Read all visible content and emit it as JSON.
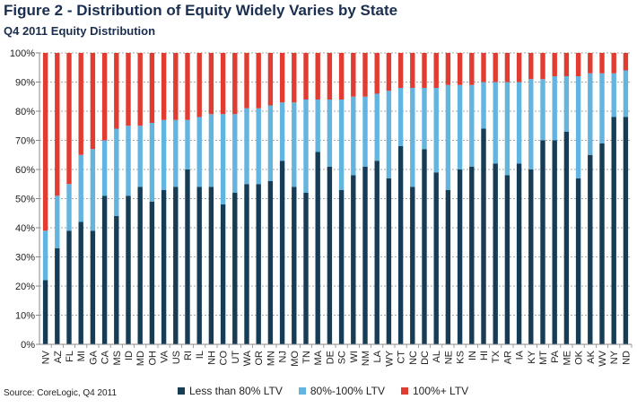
{
  "header": {
    "title": "Figure 2 - Distribution of Equity Widely Varies by State",
    "subtitle": "Q4 2011 Equity Distribution"
  },
  "footer": {
    "source": "Source: CoreLogic, Q4 2011"
  },
  "colors": {
    "less80": "#173c55",
    "ltv80_100": "#64b4e0",
    "ltv100plus": "#e03c31",
    "grid": "#8a8a8a",
    "axis": "#8a8a8a"
  },
  "chart_data": {
    "type": "bar",
    "stacked": true,
    "categories": [
      "NV",
      "AZ",
      "FL",
      "MI",
      "GA",
      "CA",
      "MS",
      "ID",
      "MD",
      "OH",
      "VA",
      "US",
      "RI",
      "IL",
      "NH",
      "CO",
      "UT",
      "WA",
      "OR",
      "MN",
      "NJ",
      "MO",
      "TN",
      "MA",
      "DE",
      "SC",
      "WI",
      "NM",
      "LA",
      "WY",
      "CT",
      "NC",
      "DC",
      "AL",
      "NE",
      "KS",
      "IN",
      "HI",
      "TX",
      "AR",
      "IA",
      "KY",
      "MT",
      "PA",
      "ME",
      "OK",
      "AK",
      "WV",
      "NY",
      "ND"
    ],
    "series": [
      {
        "name": "Less than 80% LTV",
        "values": [
          22,
          33,
          39,
          42,
          39,
          51,
          44,
          51,
          54,
          49,
          53,
          54,
          60,
          54,
          54,
          48,
          52,
          55,
          55,
          56,
          63,
          54,
          52,
          66,
          61,
          53,
          58,
          61,
          63,
          57,
          68,
          54,
          67,
          59,
          53,
          60,
          61,
          74,
          62,
          58,
          62,
          60,
          70,
          70,
          73,
          57,
          65,
          69,
          78,
          78
        ]
      },
      {
        "name": "80%-100% LTV",
        "values": [
          17,
          18,
          16,
          23,
          28,
          19,
          30,
          24,
          21,
          27,
          24,
          23,
          17,
          24,
          25,
          31,
          27,
          26,
          26,
          26,
          20,
          29,
          32,
          18,
          23,
          31,
          27,
          24,
          23,
          30,
          20,
          34,
          21,
          29,
          36,
          29,
          28,
          16,
          28,
          32,
          28,
          31,
          21,
          22,
          19,
          35,
          28,
          24,
          15,
          16
        ]
      },
      {
        "name": "100%+ LTV",
        "values": [
          61,
          49,
          45,
          35,
          33,
          30,
          26,
          25,
          25,
          24,
          23,
          23,
          23,
          22,
          21,
          21,
          21,
          19,
          19,
          18,
          17,
          17,
          16,
          16,
          16,
          16,
          15,
          15,
          14,
          13,
          12,
          12,
          12,
          12,
          11,
          11,
          11,
          10,
          10,
          10,
          10,
          9,
          9,
          8,
          8,
          8,
          7,
          7,
          7,
          6
        ]
      }
    ],
    "yticks": [
      "0%",
      "10%",
      "20%",
      "30%",
      "40%",
      "50%",
      "60%",
      "70%",
      "80%",
      "90%",
      "100%"
    ],
    "ylim": [
      0,
      100
    ],
    "grid": true,
    "legend_position": "bottom"
  }
}
